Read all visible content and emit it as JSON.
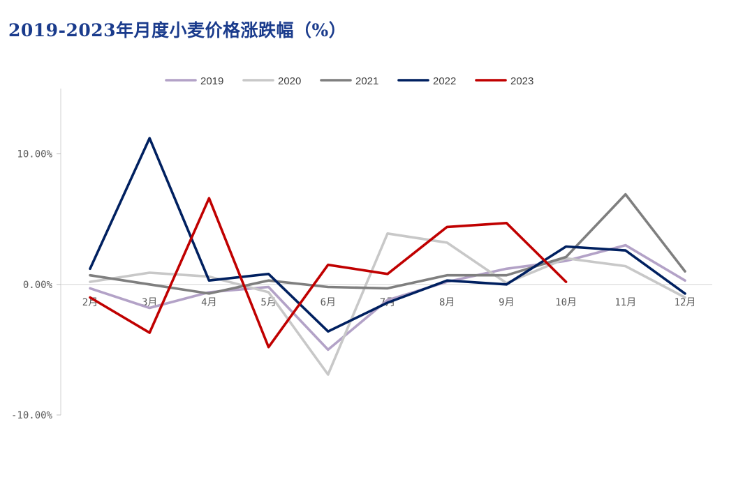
{
  "chart_data": {
    "type": "line",
    "title": "2019-2023年月度小麦价格涨跌幅（%）",
    "categories": [
      "2月",
      "3月",
      "4月",
      "5月",
      "6月",
      "7月",
      "8月",
      "9月",
      "10月",
      "11月",
      "12月"
    ],
    "ylim": [
      -10,
      15
    ],
    "yticks": [
      -10,
      0,
      10
    ],
    "ytick_labels": [
      "-10.00%",
      "0.00%",
      "10.00%"
    ],
    "legend_position": "top-center",
    "series": [
      {
        "name": "2019",
        "color": "#b3a2c7",
        "values": [
          -0.3,
          -1.8,
          -0.6,
          -0.2,
          -5.0,
          -1.2,
          0.2,
          1.2,
          1.8,
          3.0,
          0.3
        ]
      },
      {
        "name": "2020",
        "color": "#c8c8c8",
        "values": [
          0.2,
          0.9,
          0.6,
          -0.6,
          -6.9,
          3.9,
          3.2,
          0.1,
          2.0,
          1.4,
          -1.0
        ]
      },
      {
        "name": "2021",
        "color": "#7f7f7f",
        "values": [
          0.7,
          0.0,
          -0.7,
          0.3,
          -0.2,
          -0.3,
          0.7,
          0.7,
          2.1,
          6.9,
          1.0
        ]
      },
      {
        "name": "2022",
        "color": "#002060",
        "values": [
          1.2,
          11.2,
          0.3,
          0.8,
          -3.6,
          -1.4,
          0.3,
          0.0,
          2.9,
          2.6,
          -0.7
        ]
      },
      {
        "name": "2023",
        "color": "#c00000",
        "values": [
          -1.0,
          -3.7,
          6.6,
          -4.8,
          1.5,
          0.8,
          4.4,
          4.7,
          0.2,
          null,
          null
        ]
      }
    ]
  }
}
